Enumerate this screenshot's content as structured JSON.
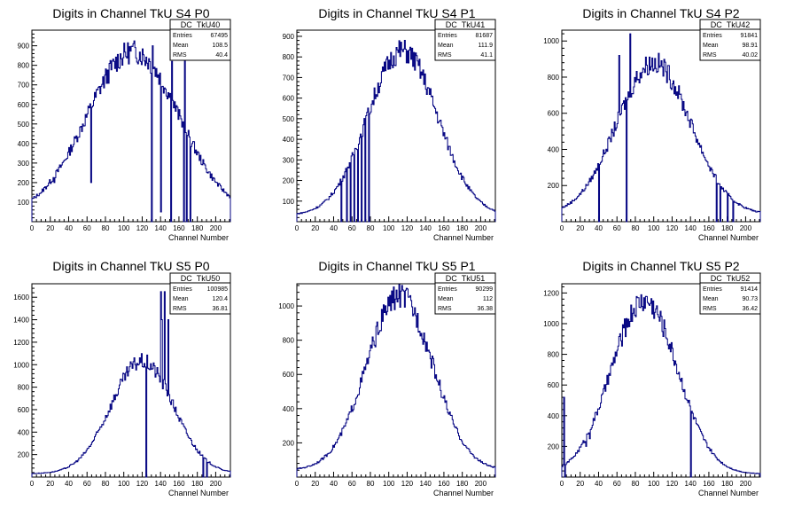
{
  "page": {
    "background": "#ffffff",
    "line_color": "#000080"
  },
  "chart_data": [
    {
      "type": "histogram",
      "title": "Digits in Channel TkU S4 P0",
      "xlabel": "Channel Number",
      "ylabel": "",
      "xlim": [
        0,
        216
      ],
      "ylim": [
        0,
        980
      ],
      "xticks": [
        0,
        20,
        40,
        60,
        80,
        100,
        120,
        140,
        160,
        180,
        200
      ],
      "yticks": [
        100,
        200,
        300,
        400,
        500,
        600,
        700,
        800,
        900
      ],
      "stats": {
        "name": "DC_TkU40",
        "entries": "67495",
        "mean": "108.5",
        "rms": "40.4"
      },
      "shape": {
        "peak": 870,
        "center": 110,
        "width": 50,
        "base": 40
      },
      "spikes": [
        [
          10,
          150
        ],
        [
          24,
          200
        ],
        [
          64,
          200
        ],
        [
          130,
          0
        ],
        [
          131,
          900
        ],
        [
          140,
          50
        ],
        [
          151,
          0
        ],
        [
          152,
          820
        ],
        [
          165,
          0
        ],
        [
          166,
          830
        ],
        [
          168,
          0
        ],
        [
          172,
          0
        ]
      ]
    },
    {
      "type": "histogram",
      "title": "Digits in Channel TkU S4 P1",
      "xlabel": "Channel Number",
      "ylabel": "",
      "xlim": [
        0,
        216
      ],
      "ylim": [
        0,
        930
      ],
      "xticks": [
        0,
        20,
        40,
        60,
        80,
        100,
        120,
        140,
        160,
        180,
        200
      ],
      "yticks": [
        100,
        200,
        300,
        400,
        500,
        600,
        700,
        800,
        900
      ],
      "stats": {
        "name": "DC_TkU41",
        "entries": "81687",
        "mean": "111.9",
        "rms": "41.1"
      },
      "shape": {
        "peak": 830,
        "center": 115,
        "width": 38,
        "base": 30
      },
      "spikes": [
        [
          48,
          0
        ],
        [
          54,
          0
        ],
        [
          58,
          0
        ],
        [
          62,
          0
        ],
        [
          66,
          0
        ],
        [
          70,
          0
        ],
        [
          74,
          0
        ],
        [
          78,
          0
        ]
      ]
    },
    {
      "type": "histogram",
      "title": "Digits in Channel TkU S4 P2",
      "xlabel": "Channel Number",
      "ylabel": "",
      "xlim": [
        0,
        216
      ],
      "ylim": [
        0,
        1060
      ],
      "xticks": [
        0,
        20,
        40,
        60,
        80,
        100,
        120,
        140,
        160,
        180,
        200
      ],
      "yticks": [
        200,
        400,
        600,
        800,
        1000
      ],
      "stats": {
        "name": "DC_TkU42",
        "entries": "91841",
        "mean": "98.91",
        "rms": "40.02"
      },
      "shape": {
        "peak": 880,
        "center": 100,
        "width": 40,
        "base": 40
      },
      "spikes": [
        [
          40,
          0
        ],
        [
          70,
          0
        ],
        [
          74,
          1040
        ],
        [
          62,
          920
        ],
        [
          168,
          0
        ],
        [
          172,
          0
        ],
        [
          180,
          0
        ],
        [
          186,
          0
        ]
      ]
    },
    {
      "type": "histogram",
      "title": "Digits in Channel TkU S5 P0",
      "xlabel": "Channel Number",
      "ylabel": "",
      "xlim": [
        0,
        216
      ],
      "ylim": [
        0,
        1720
      ],
      "xticks": [
        0,
        20,
        40,
        60,
        80,
        100,
        120,
        140,
        160,
        180,
        200
      ],
      "yticks": [
        200,
        400,
        600,
        800,
        1000,
        1200,
        1400,
        1600
      ],
      "stats": {
        "name": "DC_TkU50",
        "entries": "100985",
        "mean": "120.4",
        "rms": "36.81"
      },
      "shape": {
        "peak": 1030,
        "center": 120,
        "width": 34,
        "base": 30
      },
      "spikes": [
        [
          124,
          0
        ],
        [
          140,
          1650
        ],
        [
          141,
          1400
        ],
        [
          144,
          1650
        ],
        [
          148,
          1400
        ],
        [
          190,
          0
        ],
        [
          186,
          0
        ]
      ]
    },
    {
      "type": "histogram",
      "title": "Digits in Channel TkU S5 P1",
      "xlabel": "Channel Number",
      "ylabel": "",
      "xlim": [
        0,
        216
      ],
      "ylim": [
        0,
        1130
      ],
      "xticks": [
        0,
        20,
        40,
        60,
        80,
        100,
        120,
        140,
        160,
        180,
        200
      ],
      "yticks": [
        200,
        400,
        600,
        800,
        1000
      ],
      "stats": {
        "name": "DC_TkU51",
        "entries": "90299",
        "mean": "112",
        "rms": "36.38"
      },
      "shape": {
        "peak": 1060,
        "center": 112,
        "width": 36,
        "base": 40
      },
      "spikes": []
    },
    {
      "type": "histogram",
      "title": "Digits in Channel TkU S5 P2",
      "xlabel": "Channel Number",
      "ylabel": "",
      "xlim": [
        0,
        216
      ],
      "ylim": [
        0,
        1260
      ],
      "xticks": [
        0,
        20,
        40,
        60,
        80,
        100,
        120,
        140,
        160,
        180,
        200
      ],
      "yticks": [
        200,
        400,
        600,
        800,
        1000,
        1200
      ],
      "stats": {
        "name": "DC_TkU52",
        "entries": "91414",
        "mean": "90.73",
        "rms": "36.42"
      },
      "shape": {
        "peak": 1150,
        "center": 90,
        "width": 36,
        "base": 20
      },
      "spikes": [
        [
          2,
          520
        ],
        [
          3,
          0
        ],
        [
          26,
          200
        ],
        [
          30,
          250
        ],
        [
          140,
          0
        ]
      ]
    }
  ],
  "stats_labels": {
    "entries": "Entries",
    "mean": "Mean",
    "rms": "RMS"
  }
}
